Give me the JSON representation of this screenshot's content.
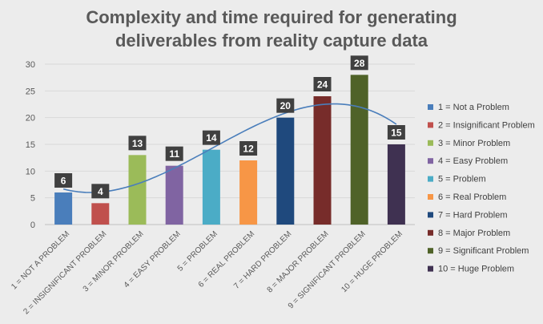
{
  "chart_data": {
    "type": "bar",
    "title_lines": [
      "Complexity and time required for generating",
      "deliverables from reality capture data"
    ],
    "categories": [
      "1 = NOT A PROBLEM",
      "2 = INSIGNIFICANT PROBLEM",
      "3 = MINOR PROBLEM",
      "4 = EASY PROBLEM",
      "5 = PROBLEM",
      "6 = REAL PROBLEM",
      "7 = HARD PROBLEM",
      "8 = MAJOR PROBLEM",
      "9 = SIGNIFICANT PROBLEM",
      "10 = HUGE PROBLEM"
    ],
    "values": [
      6,
      4,
      13,
      11,
      14,
      12,
      20,
      24,
      28,
      15
    ],
    "colors": [
      "#4a7ebb",
      "#c0504d",
      "#9bbb59",
      "#8064a2",
      "#4bacc6",
      "#f79646",
      "#1f497d",
      "#772c2a",
      "#4f6228",
      "#3f3151"
    ],
    "legend": [
      "1 = Not a Problem",
      "2 = Insignificant Problem",
      "3 = Minor Problem",
      "4 = Easy Problem",
      "5 = Problem",
      "6 = Real Problem",
      "7 = Hard Problem",
      "8 = Major Problem",
      "9 = Significant Problem",
      "10 = Huge Problem"
    ],
    "legend_position": "right",
    "ylim": [
      0,
      30
    ],
    "yticks": [
      0,
      5,
      10,
      15,
      20,
      25,
      30
    ],
    "grid": true,
    "trendline": {
      "type": "polynomial",
      "color": "#4a7ebb"
    },
    "data_labels": true
  }
}
